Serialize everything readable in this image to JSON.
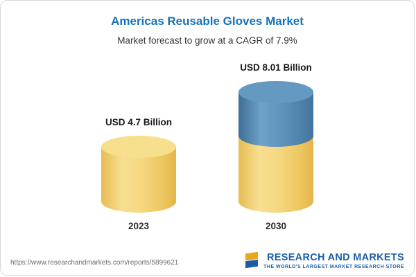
{
  "page": {
    "title": "Americas Reusable Gloves Market",
    "subtitle": "Market forecast to grow at a CAGR of 7.9%"
  },
  "chart_data": {
    "type": "bar",
    "variant": "3d-cylinder",
    "title": "Americas Reusable Gloves Market",
    "subtitle": "Market forecast to grow at a CAGR of 7.9%",
    "cagr": "7.9%",
    "unit": "USD Billion",
    "categories": [
      "2023",
      "2030"
    ],
    "values": [
      4.7,
      8.01
    ],
    "value_labels": [
      "USD 4.7 Billion",
      "USD 8.01 Billion"
    ],
    "legend": "none",
    "grid": false,
    "colors": {
      "bar_2023": "#F2CF68",
      "bar_2030_growth_segment": "#4D80AC",
      "bar_2030_base_segment": "#F2CF68",
      "title_text": "#1472BC"
    }
  },
  "footer": {
    "url": "https://www.researchandmarkets.com/reports/5899621",
    "logo_text": "RESEARCH AND MARKETS",
    "logo_tagline": "THE WORLD'S LARGEST MARKET RESEARCH STORE"
  }
}
